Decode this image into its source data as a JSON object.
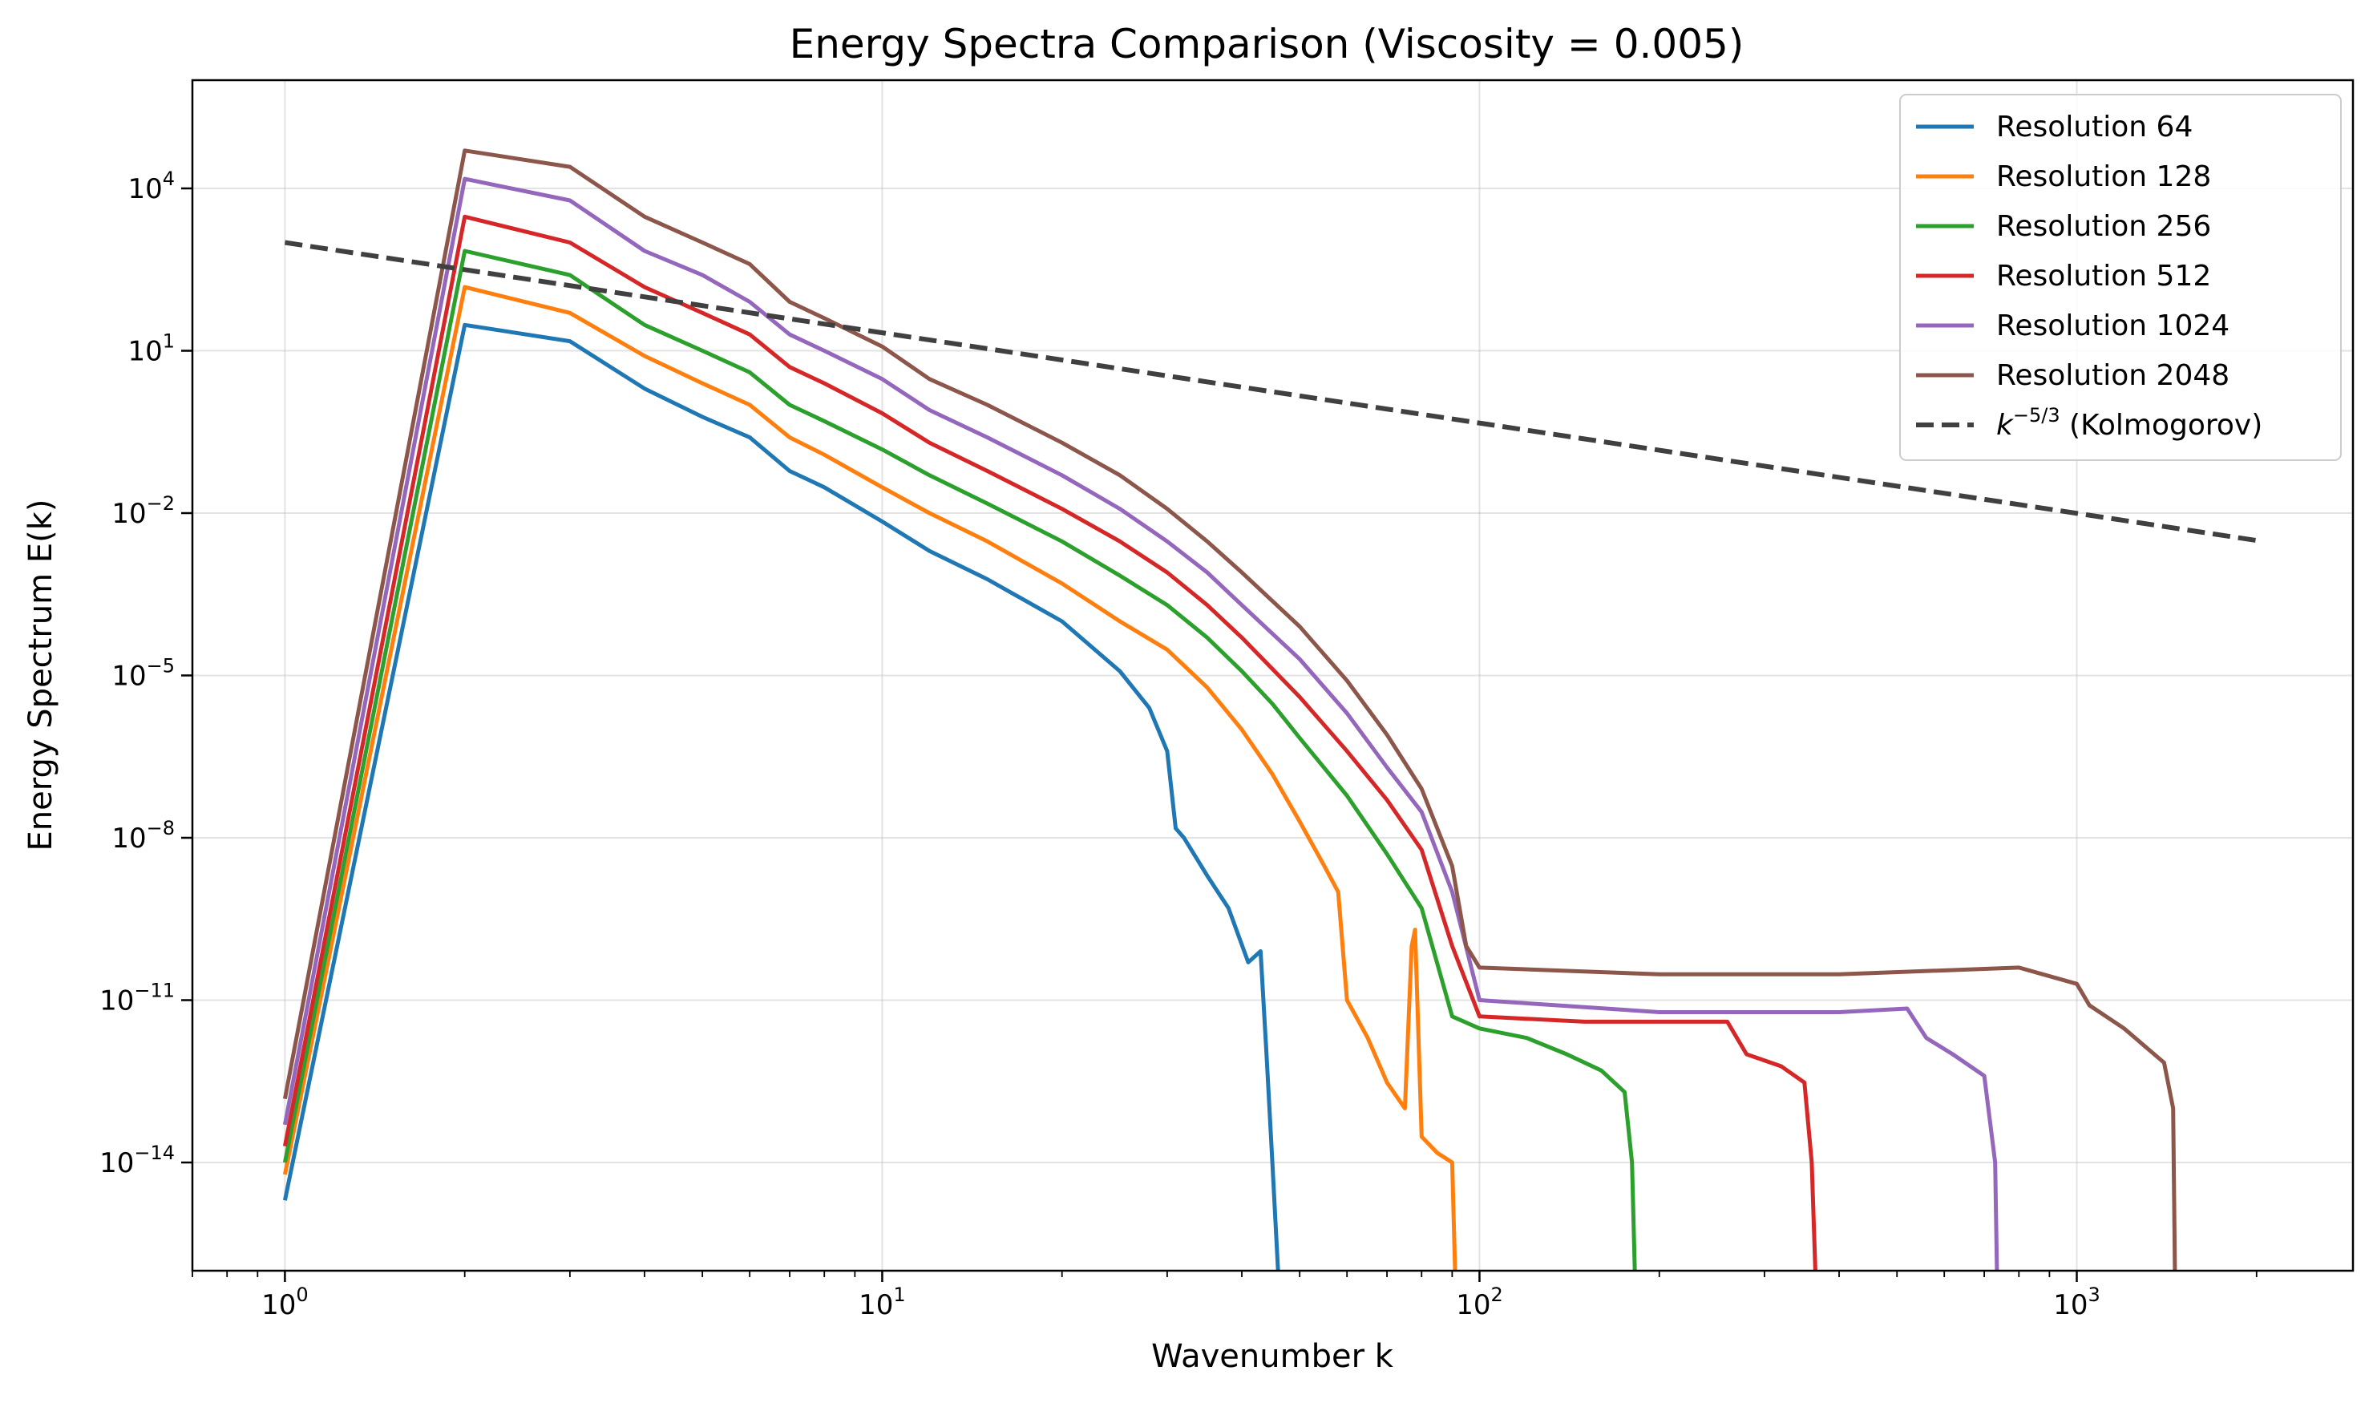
{
  "chart_data": {
    "type": "line",
    "title": "Energy Spectra Comparison (Viscosity = 0.005)",
    "xlabel": "Wavenumber k",
    "ylabel": "Energy Spectrum E(k)",
    "xscale": "log",
    "yscale": "log",
    "xlim": [
      0.7,
      2900
    ],
    "ylim": [
      1e-16,
      1000000.0
    ],
    "grid": true,
    "legend_position": "top-right",
    "x_ticks": [
      {
        "value": 1,
        "base": "10",
        "exp": "0"
      },
      {
        "value": 10,
        "base": "10",
        "exp": "1"
      },
      {
        "value": 100,
        "base": "10",
        "exp": "2"
      },
      {
        "value": 1000,
        "base": "10",
        "exp": "3"
      }
    ],
    "y_ticks": [
      {
        "value": 10000.0,
        "base": "10",
        "exp": "4"
      },
      {
        "value": 10,
        "base": "10",
        "exp": "1"
      },
      {
        "value": 0.01,
        "base": "10",
        "exp": "−2"
      },
      {
        "value": 1e-05,
        "base": "10",
        "exp": "−5"
      },
      {
        "value": 1e-08,
        "base": "10",
        "exp": "−8"
      },
      {
        "value": 1e-11,
        "base": "10",
        "exp": "−11"
      },
      {
        "value": 1e-14,
        "base": "10",
        "exp": "−14"
      }
    ],
    "series": [
      {
        "name": "Resolution 64",
        "color": "#1f77b4",
        "points": [
          [
            1,
            2e-15
          ],
          [
            2,
            30
          ],
          [
            3,
            15
          ],
          [
            4,
            2
          ],
          [
            5,
            0.6
          ],
          [
            6,
            0.25
          ],
          [
            7,
            0.06
          ],
          [
            8,
            0.03
          ],
          [
            10,
            0.007
          ],
          [
            12,
            0.002
          ],
          [
            15,
            0.0006
          ],
          [
            20,
            0.0001
          ],
          [
            25,
            1.2e-05
          ],
          [
            28,
            2.5e-06
          ],
          [
            30,
            4e-07
          ],
          [
            31,
            1.5e-08
          ],
          [
            32,
            1e-08
          ],
          [
            35,
            2e-09
          ],
          [
            38,
            5e-10
          ],
          [
            41,
            5e-11
          ],
          [
            43,
            8e-11
          ],
          [
            44,
            1e-12
          ],
          [
            45,
            1e-14
          ],
          [
            46,
            1e-16
          ]
        ]
      },
      {
        "name": "Resolution 128",
        "color": "#ff7f0e",
        "points": [
          [
            1,
            6e-15
          ],
          [
            2,
            150
          ],
          [
            3,
            50
          ],
          [
            4,
            8
          ],
          [
            5,
            2.5
          ],
          [
            6,
            1
          ],
          [
            7,
            0.25
          ],
          [
            8,
            0.12
          ],
          [
            10,
            0.03
          ],
          [
            12,
            0.01
          ],
          [
            15,
            0.003
          ],
          [
            20,
            0.0005
          ],
          [
            25,
            0.0001
          ],
          [
            30,
            3e-05
          ],
          [
            35,
            6e-06
          ],
          [
            40,
            1e-06
          ],
          [
            45,
            1.5e-07
          ],
          [
            50,
            2e-08
          ],
          [
            55,
            3e-09
          ],
          [
            58,
            1e-09
          ],
          [
            60,
            1e-11
          ],
          [
            65,
            2e-12
          ],
          [
            70,
            3e-13
          ],
          [
            75,
            1e-13
          ],
          [
            77,
            1e-10
          ],
          [
            78,
            2e-10
          ],
          [
            80,
            3e-14
          ],
          [
            85,
            1.5e-14
          ],
          [
            90,
            1e-14
          ],
          [
            91,
            1e-16
          ]
        ]
      },
      {
        "name": "Resolution 256",
        "color": "#2ca02c",
        "points": [
          [
            1,
            1e-14
          ],
          [
            2,
            700
          ],
          [
            3,
            250
          ],
          [
            4,
            30
          ],
          [
            5,
            10
          ],
          [
            6,
            4
          ],
          [
            7,
            1
          ],
          [
            8,
            0.5
          ],
          [
            10,
            0.15
          ],
          [
            12,
            0.05
          ],
          [
            15,
            0.015
          ],
          [
            20,
            0.003
          ],
          [
            25,
            0.0007
          ],
          [
            30,
            0.0002
          ],
          [
            35,
            5e-05
          ],
          [
            40,
            1.2e-05
          ],
          [
            45,
            3e-06
          ],
          [
            50,
            7e-07
          ],
          [
            60,
            6e-08
          ],
          [
            70,
            5e-09
          ],
          [
            80,
            5e-10
          ],
          [
            90,
            5e-12
          ],
          [
            100,
            3e-12
          ],
          [
            120,
            2e-12
          ],
          [
            140,
            1e-12
          ],
          [
            160,
            5e-13
          ],
          [
            175,
            2e-13
          ],
          [
            180,
            1e-14
          ],
          [
            182,
            1e-16
          ]
        ]
      },
      {
        "name": "Resolution 512",
        "color": "#d62728",
        "points": [
          [
            1,
            2e-14
          ],
          [
            2,
            3000
          ],
          [
            3,
            1000
          ],
          [
            4,
            150
          ],
          [
            5,
            50
          ],
          [
            6,
            20
          ],
          [
            7,
            5
          ],
          [
            8,
            2.5
          ],
          [
            10,
            0.7
          ],
          [
            12,
            0.2
          ],
          [
            15,
            0.06
          ],
          [
            20,
            0.012
          ],
          [
            25,
            0.003
          ],
          [
            30,
            0.0008
          ],
          [
            35,
            0.0002
          ],
          [
            40,
            5e-05
          ],
          [
            50,
            4e-06
          ],
          [
            60,
            4e-07
          ],
          [
            70,
            5e-08
          ],
          [
            80,
            6e-09
          ],
          [
            90,
            1e-10
          ],
          [
            100,
            5e-12
          ],
          [
            150,
            4e-12
          ],
          [
            200,
            4e-12
          ],
          [
            260,
            4e-12
          ],
          [
            280,
            1e-12
          ],
          [
            320,
            6e-13
          ],
          [
            350,
            3e-13
          ],
          [
            360,
            1e-14
          ],
          [
            365,
            1e-16
          ]
        ]
      },
      {
        "name": "Resolution 1024",
        "color": "#9467bd",
        "points": [
          [
            1,
            5e-14
          ],
          [
            2,
            15000
          ],
          [
            3,
            6000
          ],
          [
            4,
            700
          ],
          [
            5,
            250
          ],
          [
            6,
            80
          ],
          [
            7,
            20
          ],
          [
            8,
            10
          ],
          [
            10,
            3
          ],
          [
            12,
            0.8
          ],
          [
            15,
            0.25
          ],
          [
            20,
            0.05
          ],
          [
            25,
            0.012
          ],
          [
            30,
            0.003
          ],
          [
            35,
            0.0008
          ],
          [
            40,
            0.0002
          ],
          [
            50,
            2e-05
          ],
          [
            60,
            2e-06
          ],
          [
            70,
            2e-07
          ],
          [
            80,
            3e-08
          ],
          [
            90,
            1e-09
          ],
          [
            100,
            1e-11
          ],
          [
            200,
            6e-12
          ],
          [
            400,
            6e-12
          ],
          [
            520,
            7e-12
          ],
          [
            560,
            2e-12
          ],
          [
            620,
            1e-12
          ],
          [
            700,
            4e-13
          ],
          [
            730,
            1e-14
          ],
          [
            735,
            1e-16
          ]
        ]
      },
      {
        "name": "Resolution 2048",
        "color": "#8c564b",
        "points": [
          [
            1,
            1.5e-13
          ],
          [
            2,
            50000
          ],
          [
            3,
            25000
          ],
          [
            4,
            3000
          ],
          [
            5,
            1000
          ],
          [
            6,
            400
          ],
          [
            7,
            80
          ],
          [
            8,
            40
          ],
          [
            10,
            12
          ],
          [
            12,
            3
          ],
          [
            15,
            1
          ],
          [
            20,
            0.2
          ],
          [
            25,
            0.05
          ],
          [
            30,
            0.012
          ],
          [
            35,
            0.003
          ],
          [
            40,
            0.0008
          ],
          [
            50,
            8e-05
          ],
          [
            60,
            8e-06
          ],
          [
            70,
            8e-07
          ],
          [
            80,
            8e-08
          ],
          [
            90,
            3e-09
          ],
          [
            95,
            1e-10
          ],
          [
            100,
            4e-11
          ],
          [
            200,
            3e-11
          ],
          [
            400,
            3e-11
          ],
          [
            800,
            4e-11
          ],
          [
            1000,
            2e-11
          ],
          [
            1050,
            8e-12
          ],
          [
            1200,
            3e-12
          ],
          [
            1400,
            7e-13
          ],
          [
            1450,
            1e-13
          ],
          [
            1460,
            1e-16
          ]
        ]
      }
    ],
    "reference_line": {
      "name": "k^(−5/3) (Kolmogorov)",
      "legend_text": " (Kolmogorov)",
      "color": "#404040",
      "style": "dashed",
      "points": [
        [
          1,
          1000
        ],
        [
          2048,
          0.003
        ]
      ]
    }
  }
}
